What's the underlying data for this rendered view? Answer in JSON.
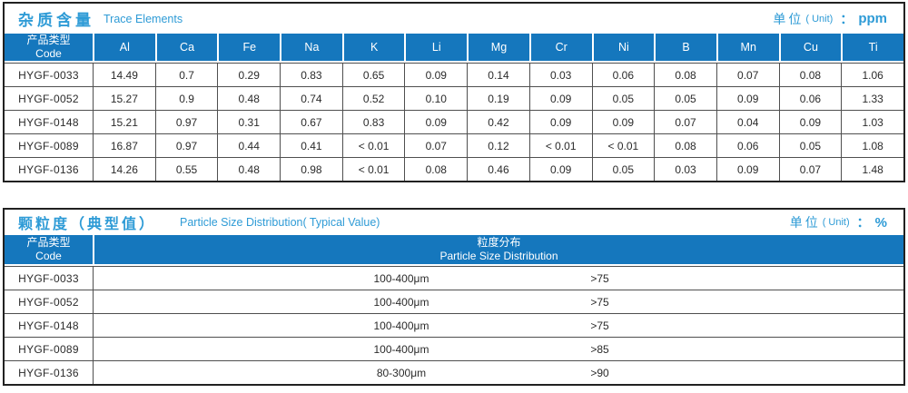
{
  "accent": {
    "header_blue": "#1577bd",
    "title_blue": "#2e9bd6",
    "grid_gray": "#4f4f4f",
    "outer_border": "#212121"
  },
  "trace_table": {
    "title_zh": "杂质含量",
    "title_en": "Trace Elements",
    "unit_label": "单位",
    "unit_paren": "( Unit)",
    "unit_colon": "：",
    "unit_value": "ppm",
    "code_header_zh": "产品类型",
    "code_header_en": "Code",
    "columns": [
      "Al",
      "Ca",
      "Fe",
      "Na",
      "K",
      "Li",
      "Mg",
      "Cr",
      "Ni",
      "B",
      "Mn",
      "Cu",
      "Ti"
    ],
    "rows": [
      {
        "code": "HYGF-0033",
        "values": [
          "14.49",
          "0.7",
          "0.29",
          "0.83",
          "0.65",
          "0.09",
          "0.14",
          "0.03",
          "0.06",
          "0.08",
          "0.07",
          "0.08",
          "1.06"
        ]
      },
      {
        "code": "HYGF-0052",
        "values": [
          "15.27",
          "0.9",
          "0.48",
          "0.74",
          "0.52",
          "0.10",
          "0.19",
          "0.09",
          "0.05",
          "0.05",
          "0.09",
          "0.06",
          "1.33"
        ]
      },
      {
        "code": "HYGF-0148",
        "values": [
          "15.21",
          "0.97",
          "0.31",
          "0.67",
          "0.83",
          "0.09",
          "0.42",
          "0.09",
          "0.09",
          "0.07",
          "0.04",
          "0.09",
          "1.03"
        ]
      },
      {
        "code": "HYGF-0089",
        "values": [
          "16.87",
          "0.97",
          "0.44",
          "0.41",
          "< 0.01",
          "0.07",
          "0.12",
          "< 0.01",
          "< 0.01",
          "0.08",
          "0.06",
          "0.05",
          "1.08"
        ]
      },
      {
        "code": "HYGF-0136",
        "values": [
          "14.26",
          "0.55",
          "0.48",
          "0.98",
          "< 0.01",
          "0.08",
          "0.46",
          "0.09",
          "0.05",
          "0.03",
          "0.09",
          "0.07",
          "1.48"
        ]
      }
    ]
  },
  "psd_table": {
    "title_zh": "颗粒度（典型值）",
    "title_en": "Particle Size Distribution( Typical Value)",
    "unit_label": "单位",
    "unit_paren": "( Unit)",
    "unit_colon": "：",
    "unit_value": "%",
    "code_header_zh": "产品类型",
    "code_header_en": "Code",
    "dist_header_zh": "粒度分布",
    "dist_header_en": "Particle Size  Distribution",
    "rows": [
      {
        "code": "HYGF-0033",
        "range": "100-400μm",
        "pct": ">75"
      },
      {
        "code": "HYGF-0052",
        "range": "100-400μm",
        "pct": ">75"
      },
      {
        "code": "HYGF-0148",
        "range": "100-400μm",
        "pct": ">75"
      },
      {
        "code": "HYGF-0089",
        "range": "100-400μm",
        "pct": ">85"
      },
      {
        "code": "HYGF-0136",
        "range": "80-300μm",
        "pct": ">90"
      }
    ]
  }
}
